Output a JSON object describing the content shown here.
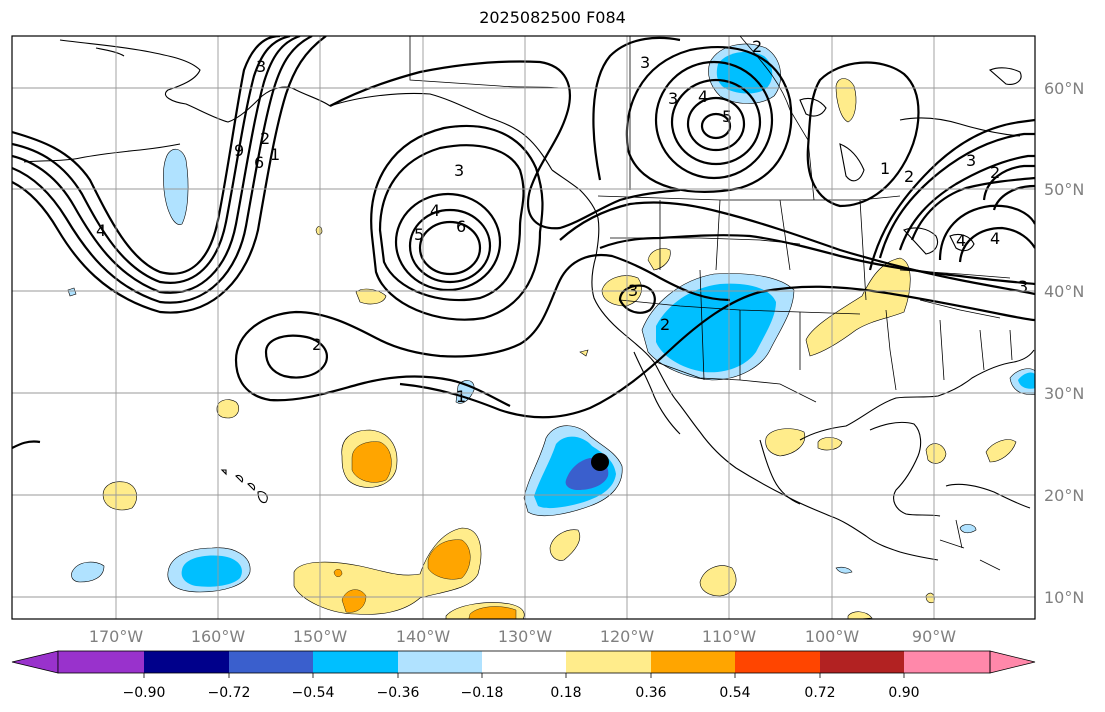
{
  "title": "2025082500 F084",
  "axes": {
    "lon_labels": [
      "170°W",
      "160°W",
      "150°W",
      "140°W",
      "130°W",
      "120°W",
      "110°W",
      "100°W",
      "90°W"
    ],
    "lat_labels": [
      "60°N",
      "50°N",
      "40°N",
      "30°N",
      "20°N",
      "10°N"
    ]
  },
  "colorbar": {
    "ticks": [
      "−0.90",
      "−0.72",
      "−0.54",
      "−0.36",
      "−0.18",
      "0.18",
      "0.36",
      "0.54",
      "0.72",
      "0.90"
    ],
    "colors": [
      "#9932cc",
      "#00008b",
      "#3a5fcd",
      "#00bfff",
      "#b0e2ff",
      "#ffffff",
      "#ffec8b",
      "#ffa500",
      "#ff4500",
      "#b22222",
      "#ff88aa"
    ]
  },
  "contour_labels": [
    "3",
    "2",
    "3",
    "4",
    "5",
    "2",
    "6",
    "9",
    "1",
    "4",
    "3",
    "5",
    "6",
    "4",
    "2",
    "1",
    "3",
    "3",
    "2",
    "1",
    "2",
    "3",
    "2",
    "3",
    "4",
    "4"
  ],
  "marker": {
    "lon": -122.5,
    "lat": 23.5,
    "color": "#000000"
  }
}
